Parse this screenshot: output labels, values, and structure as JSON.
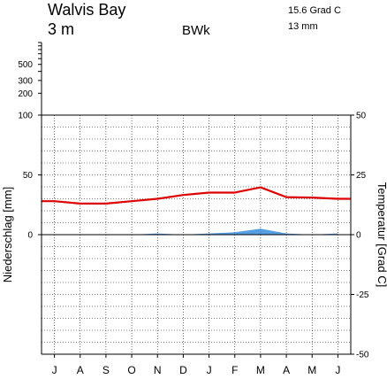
{
  "header": {
    "station": "Walvis Bay",
    "elevation": "3 m",
    "climate_class": "BWk",
    "mean_temp": "15.6 Grad C",
    "annual_precip": "13 mm"
  },
  "chart_data": {
    "type": "line",
    "title": "Walvis Bay",
    "categories": [
      "J",
      "A",
      "S",
      "O",
      "N",
      "D",
      "J",
      "F",
      "M",
      "A",
      "M",
      "J"
    ],
    "series": [
      {
        "name": "Niederschlag",
        "kind": "area",
        "axis": "left",
        "color": "#1f7fd9",
        "values": [
          0,
          0,
          0,
          0,
          1,
          0,
          1,
          2,
          5,
          1,
          0,
          1
        ]
      },
      {
        "name": "Temperatur",
        "kind": "line",
        "axis": "right",
        "color": "#dd0000",
        "values": [
          14.0,
          13.0,
          13.0,
          14.0,
          15.0,
          16.6,
          17.6,
          17.6,
          19.8,
          15.7,
          15.5,
          15.0
        ]
      }
    ],
    "ylabel_left": "Niederschlag [mm]",
    "ylabel_right": "Temperatur [Grad C]",
    "left_ticks_linear": [
      "100",
      "50",
      "0"
    ],
    "left_ticks_log": [
      "500",
      "300",
      "200"
    ],
    "right_ticks": [
      "50",
      "25",
      "0",
      "-25",
      "-50"
    ],
    "ylim_left": [
      -100,
      100
    ],
    "ylim_right": [
      -50,
      50
    ],
    "grid": true
  }
}
